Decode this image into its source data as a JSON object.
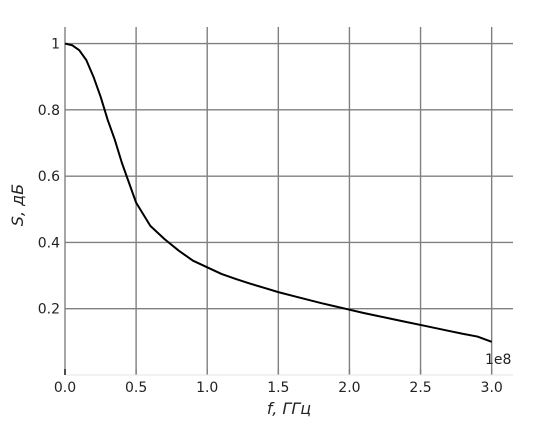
{
  "chart_data": {
    "type": "line",
    "title": "",
    "xlabel": "f, ГГц",
    "ylabel": "S, дБ",
    "x_offset_label": "1e8",
    "xlim": [
      0,
      3.15
    ],
    "ylim": [
      0,
      1.05
    ],
    "xticks": [
      0.0,
      0.5,
      1.0,
      1.5,
      2.0,
      2.5,
      3.0
    ],
    "xtick_labels": [
      "0.0",
      "0.5",
      "1.0",
      "1.5",
      "2.0",
      "2.5",
      "3.0"
    ],
    "yticks": [
      0.2,
      0.4,
      0.6,
      0.8,
      1.0
    ],
    "ytick_labels": [
      "0.2",
      "0.4",
      "0.6",
      "0.8",
      "1"
    ],
    "grid": true,
    "colors": {
      "line": "#000000",
      "grid": "#808080"
    },
    "series": [
      {
        "x": [
          0.0,
          0.05,
          0.1,
          0.15,
          0.2,
          0.25,
          0.3,
          0.35,
          0.4,
          0.45,
          0.5,
          0.6,
          0.7,
          0.8,
          0.9,
          1.0,
          1.1,
          1.2,
          1.3,
          1.4,
          1.5,
          1.6,
          1.7,
          1.8,
          1.9,
          2.0,
          2.1,
          2.2,
          2.3,
          2.4,
          2.5,
          2.6,
          2.7,
          2.8,
          2.9,
          3.0
        ],
        "y": [
          1.0,
          0.995,
          0.98,
          0.95,
          0.9,
          0.84,
          0.77,
          0.71,
          0.64,
          0.58,
          0.52,
          0.45,
          0.41,
          0.375,
          0.345,
          0.325,
          0.305,
          0.29,
          0.276,
          0.263,
          0.25,
          0.239,
          0.228,
          0.217,
          0.207,
          0.197,
          0.187,
          0.178,
          0.169,
          0.16,
          0.151,
          0.142,
          0.133,
          0.124,
          0.116,
          0.1
        ]
      }
    ]
  }
}
